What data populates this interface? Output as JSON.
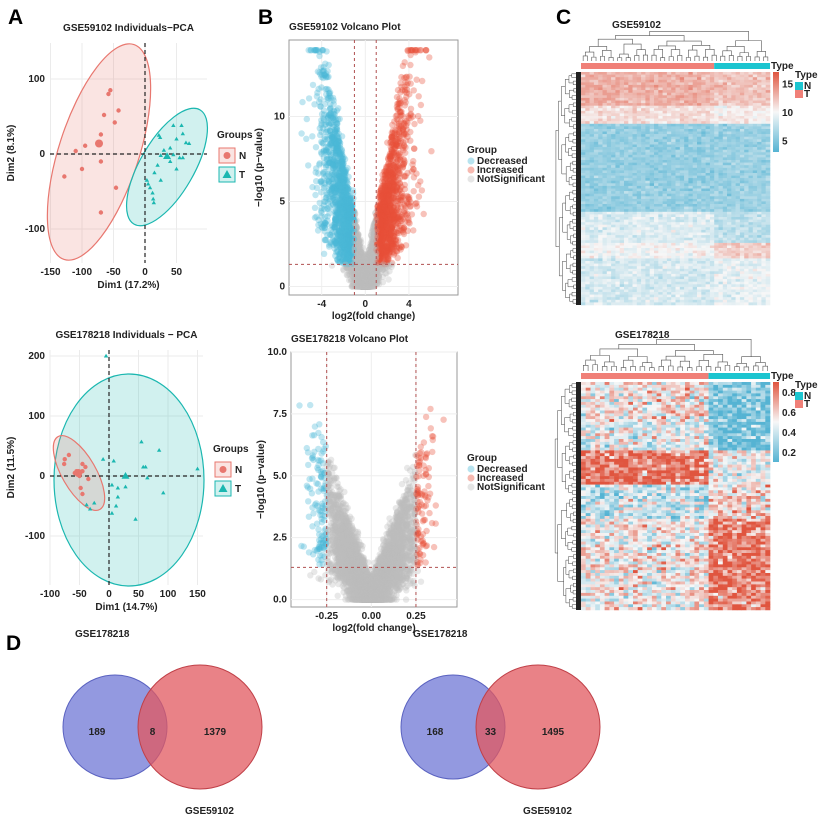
{
  "panel_labels": [
    "A",
    "B",
    "C",
    "D"
  ],
  "chart_data": [
    {
      "panel": "A",
      "type": "scatter",
      "title": "GSE59102 Individuals−PCA",
      "xlabel": "Dim1 (17.2%)",
      "ylabel": "Dim2 (8.1%)",
      "xticks": [
        "-150",
        "-100",
        "-50",
        "0",
        "50"
      ],
      "yticks": [
        "100",
        "0",
        "-100"
      ],
      "legend": {
        "title": "Groups",
        "position": "right",
        "items": [
          "N",
          "T"
        ]
      },
      "colors": {
        "N": "#e8776f",
        "T": "#1bb7b0"
      },
      "series": [
        {
          "name": "N",
          "points": [
            [
              -55,
              85
            ],
            [
              -58,
              80
            ],
            [
              -42,
              58
            ],
            [
              -65,
              52
            ],
            [
              -48,
              42
            ],
            [
              -70,
              26
            ],
            [
              -95,
              11
            ],
            [
              -110,
              4
            ],
            [
              -70,
              -10
            ],
            [
              -100,
              -20
            ],
            [
              -128,
              -30
            ],
            [
              -46,
              -45
            ],
            [
              -70,
              -78
            ]
          ],
          "centroid": [
            -73,
            14
          ]
        },
        {
          "name": "T",
          "points": [
            [
              3,
              -35
            ],
            [
              5,
              -40
            ],
            [
              8,
              -45
            ],
            [
              13,
              -60
            ],
            [
              14,
              -65
            ],
            [
              12,
              -52
            ],
            [
              22,
              25
            ],
            [
              24,
              22
            ],
            [
              45,
              38
            ],
            [
              58,
              38
            ],
            [
              60,
              27
            ],
            [
              50,
              20
            ],
            [
              70,
              14
            ],
            [
              65,
              15
            ],
            [
              40,
              8
            ],
            [
              30,
              5
            ],
            [
              25,
              -2
            ],
            [
              45,
              -1
            ],
            [
              55,
              -5
            ],
            [
              60,
              -5
            ],
            [
              20,
              -15
            ],
            [
              25,
              -35
            ],
            [
              40,
              -10
            ],
            [
              50,
              -20
            ],
            [
              15,
              -25
            ]
          ],
          "centroid": [
            35,
            -3
          ]
        }
      ]
    },
    {
      "panel": "A",
      "type": "scatter",
      "title": "GSE178218 Individuals − PCA",
      "xlabel": "Dim1 (14.7%)",
      "ylabel": "Dim2 (11.5%)",
      "xticks": [
        "-100",
        "-50",
        "0",
        "50",
        "100",
        "150"
      ],
      "yticks": [
        "200",
        "100",
        "0",
        "-100"
      ],
      "legend": {
        "title": "Groups",
        "position": "right",
        "items": [
          "N",
          "T"
        ]
      },
      "colors": {
        "N": "#e8776f",
        "T": "#1bb7b0"
      },
      "series": [
        {
          "name": "N",
          "points": [
            [
              -75,
              28
            ],
            [
              -68,
              35
            ],
            [
              -76,
              20
            ],
            [
              -55,
              8
            ],
            [
              -45,
              20
            ],
            [
              -40,
              15
            ],
            [
              -45,
              8
            ],
            [
              -35,
              -5
            ],
            [
              -48,
              -20
            ],
            [
              -45,
              -30
            ],
            [
              -50,
              0
            ],
            [
              -58,
              5
            ]
          ],
          "centroid": [
            -52,
            5
          ]
        },
        {
          "name": "T",
          "points": [
            [
              -5,
              200
            ],
            [
              -10,
              28
            ],
            [
              8,
              25
            ],
            [
              55,
              57
            ],
            [
              85,
              43
            ],
            [
              58,
              15
            ],
            [
              62,
              15
            ],
            [
              65,
              -3
            ],
            [
              150,
              12
            ],
            [
              92,
              -28
            ],
            [
              28,
              -18
            ],
            [
              15,
              -20
            ],
            [
              5,
              -15
            ],
            [
              15,
              -35
            ],
            [
              12,
              -50
            ],
            [
              5,
              -62
            ],
            [
              45,
              -72
            ],
            [
              -25,
              -45
            ],
            [
              -38,
              -48
            ],
            [
              -32,
              -55
            ]
          ],
          "centroid": [
            28,
            0
          ]
        }
      ]
    },
    {
      "panel": "B",
      "type": "scatter",
      "title": "GSE59102 Volcano Plot",
      "xlabel": "log2(fold change)",
      "ylabel": "−log10 (p−value)",
      "xticks": [
        "-4",
        "0",
        "4"
      ],
      "yticks": [
        "0",
        "5",
        "10"
      ],
      "xlim": [
        -7,
        8.5
      ],
      "ylim": [
        -0.5,
        14.5
      ],
      "fc_threshold": 1,
      "p_threshold_log": 1.3,
      "legend": {
        "title": "Group",
        "position": "right",
        "items": [
          "Decreased",
          "Increased",
          "NotSignificant"
        ]
      },
      "colors": {
        "Decreased": "#4bb8d6",
        "Increased": "#e8503a",
        "NotSignificant": "#bdbdbd"
      }
    },
    {
      "panel": "B",
      "type": "scatter",
      "title": "GSE178218 Volcano Plot",
      "xlabel": "log2(fold change)",
      "ylabel": "−log10 (p−value)",
      "xticks": [
        "-0.25",
        "0.00",
        "0.25"
      ],
      "yticks": [
        "0.0",
        "2.5",
        "5.0",
        "7.5",
        "10.0"
      ],
      "xlim": [
        -0.45,
        0.48
      ],
      "ylim": [
        -0.3,
        10
      ],
      "fc_threshold": 0.25,
      "p_threshold_log": 1.3,
      "legend": {
        "title": "Group",
        "position": "right",
        "items": [
          "Decreased",
          "Increased",
          "NotSignificant"
        ]
      },
      "colors": {
        "Decreased": "#4bb8d6",
        "Increased": "#e8503a",
        "NotSignificant": "#bdbdbd"
      }
    },
    {
      "panel": "C",
      "type": "heatmap",
      "title": "GSE59102",
      "annotation_title": "Type",
      "legend_title": "Type",
      "legend_items": [
        "N",
        "T"
      ],
      "colorbar_ticks": [
        "15",
        "10",
        "5"
      ],
      "colorbar_range": [
        3,
        17
      ],
      "colors": {
        "N": "#1cc5d0",
        "T": "#f08078",
        "high": "#e0553f",
        "mid": "#f7f7f7",
        "low": "#55b3d3"
      }
    },
    {
      "panel": "C",
      "type": "heatmap",
      "title": "GSE178218",
      "annotation_title": "Type",
      "legend_title": "Type",
      "legend_items": [
        "N",
        "T"
      ],
      "colorbar_ticks": [
        "0.8",
        "0.6",
        "0.4",
        "0.2"
      ],
      "colorbar_range": [
        0.1,
        0.9
      ],
      "colors": {
        "N": "#1cc5d0",
        "T": "#f08078",
        "high": "#e0553f",
        "mid": "#f7f7f7",
        "low": "#55b3d3"
      }
    },
    {
      "panel": "D",
      "type": "venn",
      "sets": [
        "GSE178218",
        "GSE59102"
      ],
      "values": {
        "only_a": 189,
        "both": 8,
        "only_b": 1379
      },
      "colors": {
        "a": "#6f77d6",
        "b": "#e2585f"
      }
    },
    {
      "panel": "D",
      "type": "venn",
      "sets": [
        "GSE178218",
        "GSE59102"
      ],
      "values": {
        "only_a": 168,
        "both": 33,
        "only_b": 1495
      },
      "colors": {
        "a": "#6f77d6",
        "b": "#e2585f"
      }
    }
  ]
}
